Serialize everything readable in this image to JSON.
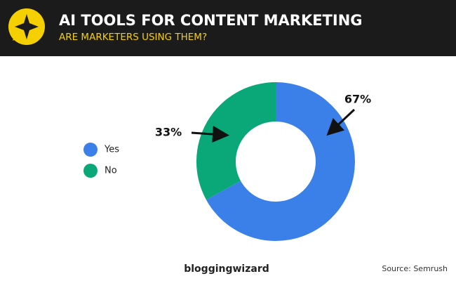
{
  "chart_data": {
    "type": "pie",
    "donut": true,
    "title": "AI TOOLS FOR CONTENT MARKETING",
    "subtitle": "ARE MARKETERS USING THEM?",
    "categories": [
      "Yes",
      "No"
    ],
    "values": [
      67,
      33
    ],
    "value_labels": [
      "67%",
      "33%"
    ],
    "colors": [
      "#3b80e8",
      "#0aa878"
    ],
    "legend": "left"
  },
  "footer": {
    "brand": "bloggingwizard",
    "source": "Source: Semrush"
  }
}
